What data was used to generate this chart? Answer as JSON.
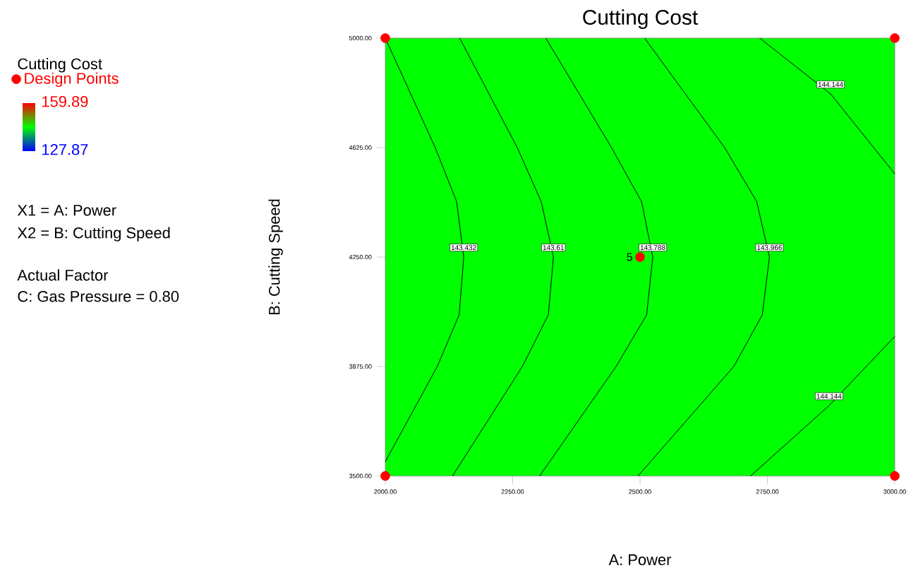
{
  "chart_data": {
    "type": "scatter",
    "title": "Cutting Cost",
    "xlabel": "A: Power",
    "ylabel": "B: Cutting Speed",
    "clabel": "Cutting Cost",
    "clim": [
      127.87,
      159.89
    ],
    "cticks": [
      159.89,
      127.87
    ],
    "xlim": [
      2000,
      3000
    ],
    "ylim": [
      3500,
      5000
    ],
    "xticks": [
      {
        "value": 2000,
        "label": "2000.00"
      },
      {
        "value": 2250,
        "label": "2250.00"
      },
      {
        "value": 2500,
        "label": "2500.00"
      },
      {
        "value": 2750,
        "label": "2750.00"
      },
      {
        "value": 3000,
        "label": "3000.00"
      }
    ],
    "yticks": [
      {
        "value": 3500,
        "label": "3500.00"
      },
      {
        "value": 3875,
        "label": "3875.00"
      },
      {
        "value": 4250,
        "label": "4250.00"
      },
      {
        "value": 4625,
        "label": "4625.00"
      },
      {
        "value": 5000,
        "label": "5000.00"
      }
    ],
    "legend": "left",
    "series": [
      {
        "name": "143.432",
        "type": "line",
        "color": "#000000",
        "x": [
          2000,
          2098,
          2140,
          2154,
          2145,
          2102,
          2000
        ],
        "values": [
          5000,
          4625,
          4440,
          4250,
          4052,
          3875,
          3549
        ]
      },
      {
        "name": "143.61",
        "type": "line",
        "color": "#000000",
        "x": [
          2146,
          2259,
          2306,
          2330,
          2320,
          2269,
          2132
        ],
        "values": [
          5000,
          4625,
          4440,
          4250,
          4052,
          3875,
          3500
        ]
      },
      {
        "name": "143.788",
        "type": "line",
        "color": "#000000",
        "x": [
          2315,
          2444,
          2503,
          2525,
          2513,
          2453,
          2303
        ],
        "values": [
          5000,
          4625,
          4440,
          4250,
          4052,
          3875,
          3500
        ]
      },
      {
        "name": "143.966",
        "type": "line",
        "color": "#000000",
        "x": [
          2509,
          2666,
          2729,
          2754,
          2740,
          2684,
          2496
        ],
        "values": [
          5000,
          4625,
          4440,
          4250,
          4052,
          3875,
          3500
        ]
      },
      {
        "name": "144.144",
        "type": "line",
        "color": "#000000",
        "x": [
          2735,
          2874,
          3000
        ],
        "values": [
          5000,
          4809,
          4535
        ]
      },
      {
        "name": "144.144",
        "type": "line",
        "color": "#000000",
        "x": [
          2717,
          2871,
          3000
        ],
        "values": [
          3500,
          3741,
          3978
        ]
      },
      {
        "name": "Design Points",
        "color": "#ff0000",
        "x": [
          2000,
          2000,
          3000,
          3000,
          2500
        ],
        "values": [
          3500,
          5000,
          3500,
          5000,
          4250
        ]
      }
    ],
    "annotations": [
      "X1 = A: Power",
      "X2 = B: Cutting Speed",
      "Actual Factor",
      "C: Gas Pressure = 0.80",
      {
        "text": "5",
        "x": 2500,
        "y": 4250
      }
    ]
  }
}
